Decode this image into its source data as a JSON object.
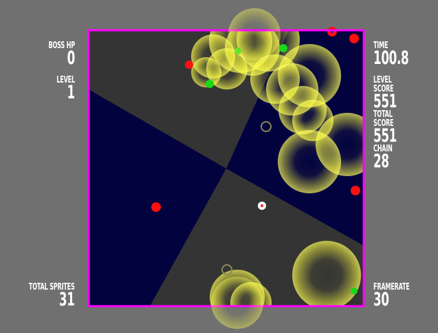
{
  "hud": {
    "boss_hp_label": "BOSS HP",
    "boss_hp_value": "0",
    "level_label": "LEVEL",
    "level_value": "1",
    "total_sprites_label": "TOTAL SPRITES",
    "total_sprites_value": "31",
    "time_label": "TIME",
    "time_value": "100.8",
    "level_score_label": "LEVEL SCORE",
    "level_score_value": "551",
    "total_score_label": "TOTAL SCORE",
    "total_score_value": "551",
    "chain_label": "CHAIN",
    "chain_value": "28",
    "framerate_label": "FRAMERATE",
    "framerate_value": "30"
  },
  "colors": {
    "background": "#707070",
    "border": "#ff00ff",
    "sector_dark": "#343434",
    "sector_navy": "#02023f",
    "explosion": "#ffff40",
    "enemy_red": "#ff1010",
    "enemy_green": "#18d818",
    "player": "#ffffff"
  }
}
